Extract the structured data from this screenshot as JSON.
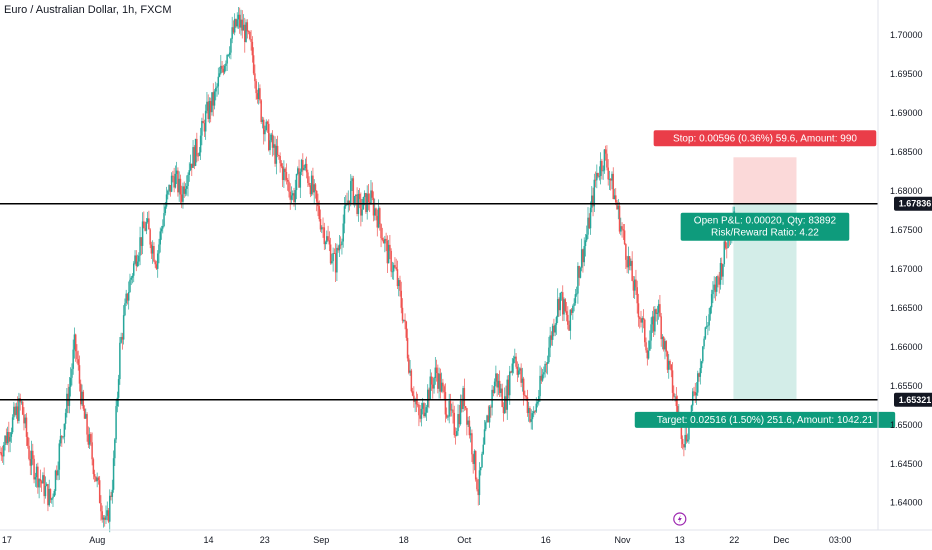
{
  "header": {
    "title": "Euro / Australian Dollar, 1h, FXCM"
  },
  "colors": {
    "up": "#26a69a",
    "down": "#ef5350",
    "stop_fill": "#fbd9d9",
    "target_fill": "#d3ede8",
    "stop_label": "#ea3d49",
    "target_label": "#0e9b7c",
    "line": "#000000",
    "price_tag": "#131722"
  },
  "chart_data": {
    "type": "candlestick",
    "title": "Euro / Australian Dollar, 1h, FXCM",
    "ylim": [
      1.6365,
      1.7045
    ],
    "y_ticks": [
      "1.70000",
      "1.69500",
      "1.69000",
      "1.68500",
      "1.68000",
      "1.67500",
      "1.67000",
      "1.66500",
      "1.66000",
      "1.65500",
      "1.65000",
      "1.64500",
      "1.64000"
    ],
    "y_tick_values": [
      1.7,
      1.695,
      1.69,
      1.685,
      1.68,
      1.675,
      1.67,
      1.665,
      1.66,
      1.655,
      1.65,
      1.645,
      1.64
    ],
    "x_ticks": [
      "17",
      "Aug",
      "14",
      "23",
      "Sep",
      "18",
      "Oct",
      "16",
      "Nov",
      "13",
      "22",
      "Dec",
      "03:00"
    ],
    "x_tick_positions": [
      0.26,
      3.7,
      7.93,
      10.07,
      12.22,
      15.36,
      17.66,
      20.76,
      23.68,
      25.86,
      27.93,
      29.72,
      31.96
    ],
    "time_span": [
      0,
      33.4
    ],
    "series_closes": [
      [
        0,
        1.6465
      ],
      [
        0.4,
        1.6498
      ],
      [
        0.8,
        1.6528
      ],
      [
        1.15,
        1.6455
      ],
      [
        1.55,
        1.6428
      ],
      [
        1.95,
        1.6402
      ],
      [
        2.3,
        1.6478
      ],
      [
        2.6,
        1.6538
      ],
      [
        2.85,
        1.6605
      ],
      [
        3.15,
        1.6518
      ],
      [
        3.45,
        1.6468
      ],
      [
        3.75,
        1.6415
      ],
      [
        4.05,
        1.6368
      ],
      [
        4.3,
        1.6435
      ],
      [
        4.55,
        1.6595
      ],
      [
        4.85,
        1.6668
      ],
      [
        5.2,
        1.6722
      ],
      [
        5.55,
        1.6758
      ],
      [
        5.95,
        1.6712
      ],
      [
        6.25,
        1.6775
      ],
      [
        6.6,
        1.6822
      ],
      [
        6.9,
        1.6795
      ],
      [
        7.2,
        1.6835
      ],
      [
        7.55,
        1.6858
      ],
      [
        7.85,
        1.6898
      ],
      [
        8.15,
        1.6918
      ],
      [
        8.45,
        1.6958
      ],
      [
        8.75,
        1.6992
      ],
      [
        9.05,
        1.7018
      ],
      [
        9.35,
        1.7002
      ],
      [
        9.6,
        1.6975
      ],
      [
        9.9,
        1.6905
      ],
      [
        10.2,
        1.6868
      ],
      [
        10.5,
        1.6845
      ],
      [
        10.85,
        1.6818
      ],
      [
        11.15,
        1.6792
      ],
      [
        11.5,
        1.6835
      ],
      [
        11.8,
        1.6812
      ],
      [
        12.15,
        1.6768
      ],
      [
        12.45,
        1.6735
      ],
      [
        12.75,
        1.6705
      ],
      [
        13.05,
        1.6758
      ],
      [
        13.35,
        1.6805
      ],
      [
        13.7,
        1.6775
      ],
      [
        14.05,
        1.6792
      ],
      [
        14.4,
        1.6765
      ],
      [
        14.75,
        1.6718
      ],
      [
        15.05,
        1.6695
      ],
      [
        15.35,
        1.6638
      ],
      [
        15.65,
        1.6555
      ],
      [
        15.95,
        1.6505
      ],
      [
        16.25,
        1.6538
      ],
      [
        16.6,
        1.6568
      ],
      [
        16.95,
        1.6528
      ],
      [
        17.3,
        1.6495
      ],
      [
        17.65,
        1.6538
      ],
      [
        17.95,
        1.6475
      ],
      [
        18.2,
        1.6415
      ],
      [
        18.5,
        1.6498
      ],
      [
        18.85,
        1.6562
      ],
      [
        19.2,
        1.6525
      ],
      [
        19.55,
        1.6595
      ],
      [
        19.9,
        1.6545
      ],
      [
        20.25,
        1.6505
      ],
      [
        20.6,
        1.6555
      ],
      [
        20.95,
        1.6612
      ],
      [
        21.3,
        1.6668
      ],
      [
        21.65,
        1.6622
      ],
      [
        22.0,
        1.6698
      ],
      [
        22.35,
        1.6748
      ],
      [
        22.7,
        1.6822
      ],
      [
        23.0,
        1.6845
      ],
      [
        23.3,
        1.6805
      ],
      [
        23.6,
        1.6758
      ],
      [
        23.95,
        1.6702
      ],
      [
        24.3,
        1.6648
      ],
      [
        24.65,
        1.6595
      ],
      [
        25.0,
        1.6655
      ],
      [
        25.35,
        1.6588
      ],
      [
        25.7,
        1.6528
      ],
      [
        26.05,
        1.6478
      ],
      [
        26.4,
        1.6535
      ],
      [
        26.75,
        1.6605
      ],
      [
        27.1,
        1.6662
      ],
      [
        27.45,
        1.6705
      ],
      [
        27.75,
        1.6752
      ],
      [
        27.95,
        1.6783
      ]
    ],
    "horizontal_lines": [
      1.67836,
      1.65321
    ],
    "price_tags": [
      {
        "value": 1.67836,
        "label": "1.67836"
      },
      {
        "value": 1.65321,
        "label": "1.65321"
      }
    ],
    "position": {
      "type": "short",
      "start_t": 27.9,
      "end_t": 30.3,
      "entry": 1.67836,
      "stop": 1.68432,
      "target": 1.6532,
      "stop_label": "Stop: 0.00596 (0.36%) 59.6, Amount: 990",
      "target_label": "Target: 0.02516 (1.50%) 251.6, Amount: 1042.21",
      "center_label_1": "Open P&L: 0.00020, Qty: 83892",
      "center_label_2": "Risk/Reward Ratio: 4.22"
    }
  }
}
